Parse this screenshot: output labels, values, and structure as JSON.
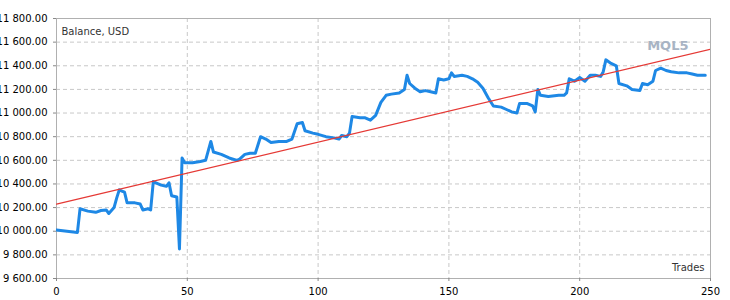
{
  "chart_data": {
    "type": "line",
    "y_label": "Balance, USD",
    "x_label": "Trades",
    "annotations": [
      "MQL5"
    ],
    "grid": true,
    "xlim": [
      0,
      250
    ],
    "xticks": [
      0,
      50,
      100,
      150,
      200,
      250
    ],
    "ylim": [
      9600,
      11800
    ],
    "yticks": [
      {
        "value": 9600,
        "label": "9 600.00"
      },
      {
        "value": 9800,
        "label": "9 800.00"
      },
      {
        "value": 10000,
        "label": "10 000.00"
      },
      {
        "value": 10200,
        "label": "10 200.00"
      },
      {
        "value": 10400,
        "label": "10 400.00"
      },
      {
        "value": 10600,
        "label": "10 600.00"
      },
      {
        "value": 10800,
        "label": "10 800.00"
      },
      {
        "value": 11000,
        "label": "11 000.00"
      },
      {
        "value": 11200,
        "label": "11 200.00"
      },
      {
        "value": 11400,
        "label": "11 400.00"
      },
      {
        "value": 11600,
        "label": "11 600.00"
      },
      {
        "value": 11800,
        "label": "11 800.00"
      }
    ],
    "series": [
      {
        "color": "#1e88e5",
        "x": [
          0,
          8,
          9,
          12,
          15,
          17,
          19,
          20,
          22,
          23,
          24,
          25,
          26,
          27,
          30,
          32,
          33,
          35,
          36,
          37,
          38,
          40,
          42,
          43,
          44,
          46,
          47,
          48,
          49,
          52,
          55,
          57,
          58,
          59,
          60,
          63,
          66,
          69,
          70,
          72,
          74,
          76,
          78,
          80,
          82,
          85,
          88,
          90,
          92,
          94,
          95,
          98,
          100,
          103,
          106,
          108,
          109,
          111,
          112,
          113,
          116,
          118,
          120,
          122,
          124,
          126,
          128,
          131,
          133,
          134,
          135,
          137,
          139,
          141,
          143,
          145,
          146,
          148,
          150,
          151,
          152,
          155,
          157,
          159,
          161,
          163,
          165,
          167,
          170,
          172,
          174,
          176,
          177,
          180,
          182,
          183,
          184,
          185,
          188,
          192,
          194,
          195,
          196,
          198,
          200,
          202,
          204,
          206,
          208,
          209,
          210,
          212,
          214,
          215,
          218,
          220,
          223,
          224,
          226,
          228,
          229,
          231,
          233,
          235,
          238,
          241,
          243,
          245,
          248
        ],
        "values": [
          10010,
          9990,
          10190,
          10170,
          10160,
          10175,
          10180,
          10150,
          10200,
          10280,
          10350,
          10340,
          10330,
          10240,
          10240,
          10230,
          10180,
          10190,
          10180,
          10420,
          10410,
          10390,
          10380,
          10410,
          10300,
          10290,
          9850,
          10620,
          10580,
          10580,
          10590,
          10600,
          10680,
          10760,
          10670,
          10650,
          10620,
          10600,
          10610,
          10650,
          10660,
          10660,
          10800,
          10780,
          10750,
          10760,
          10760,
          10780,
          10910,
          10920,
          10850,
          10830,
          10820,
          10800,
          10790,
          10780,
          10810,
          10800,
          10830,
          10970,
          10960,
          10960,
          10940,
          10980,
          11090,
          11150,
          11160,
          11170,
          11200,
          11320,
          11250,
          11210,
          11180,
          11190,
          11180,
          11170,
          11290,
          11280,
          11290,
          11340,
          11310,
          11320,
          11310,
          11290,
          11260,
          11210,
          11130,
          11060,
          11050,
          11030,
          11010,
          11000,
          11080,
          11080,
          11060,
          11010,
          11200,
          11150,
          11140,
          11150,
          11150,
          11170,
          11290,
          11270,
          11300,
          11270,
          11320,
          11320,
          11310,
          11350,
          11450,
          11420,
          11400,
          11250,
          11230,
          11200,
          11190,
          11250,
          11240,
          11270,
          11360,
          11380,
          11360,
          11350,
          11340,
          11340,
          11330,
          11320,
          11320
        ]
      },
      {
        "color": "#e53935",
        "x": [
          0,
          250
        ],
        "values": [
          10230,
          11540
        ]
      }
    ]
  }
}
